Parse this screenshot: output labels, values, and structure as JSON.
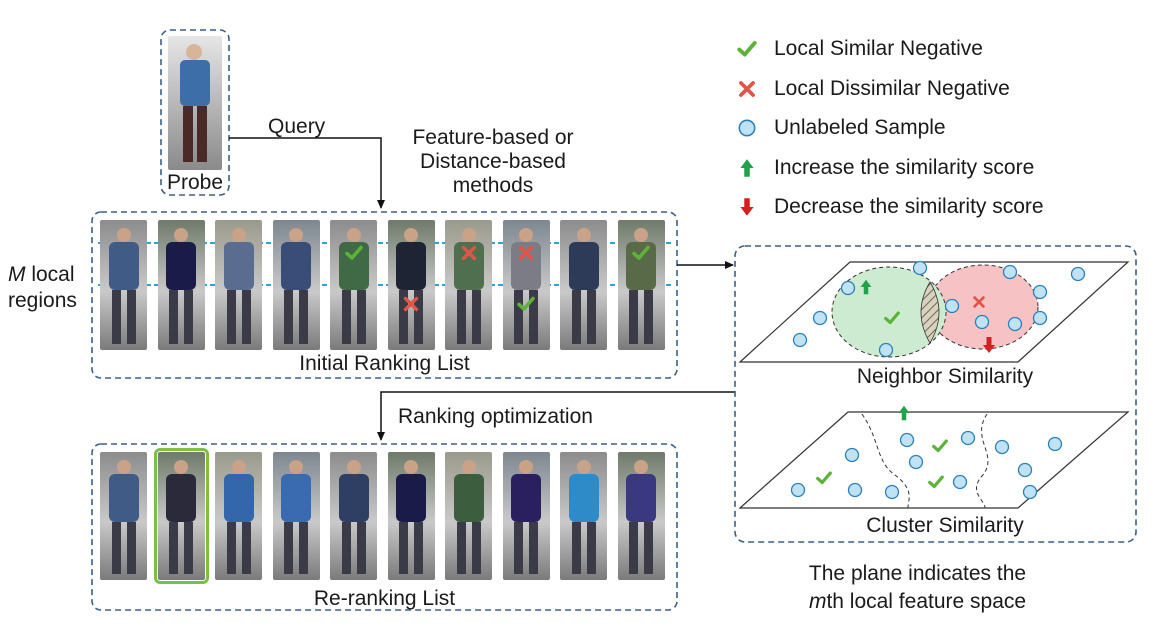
{
  "probe": {
    "label": "Probe"
  },
  "query_label": "Query",
  "method_label": [
    "Feature-based or",
    "Distance-based",
    "methods"
  ],
  "local_regions_label": {
    "italic": "M",
    "line1_rest": " local",
    "line2": "regions"
  },
  "initial_ranking": {
    "caption": "Initial Ranking List",
    "marks": [
      {
        "index": 4,
        "row": 1,
        "mark": "check"
      },
      {
        "index": 6,
        "row": 1,
        "mark": "cross"
      },
      {
        "index": 7,
        "row": 1,
        "mark": "cross"
      },
      {
        "index": 9,
        "row": 1,
        "mark": "check"
      },
      {
        "index": 5,
        "row": 2,
        "mark": "cross"
      },
      {
        "index": 7,
        "row": 2,
        "mark": "check"
      }
    ],
    "image_palette": [
      "#3f5b86",
      "#1b1b4a",
      "#5a6c8f",
      "#3a4d78",
      "#3f6a45",
      "#1e2433",
      "#4f6f4f",
      "#7c7c86",
      "#2d3a58",
      "#596a48"
    ]
  },
  "reranking": {
    "caption": "Re-ranking List",
    "highlight_index": 1,
    "highlight_color": "#7bc043",
    "image_palette": [
      "#3f5b86",
      "#2b2a3a",
      "#3366aa",
      "#3a6ab0",
      "#2f3f63",
      "#1b1b4a",
      "#3c5e3e",
      "#2a2060",
      "#2e8bc8",
      "#3a3880"
    ]
  },
  "optimization_label": "Ranking optimization",
  "legend": [
    {
      "icon": "check",
      "text": "Local Similar Negative"
    },
    {
      "icon": "cross",
      "text": "Local Dissimilar Negative"
    },
    {
      "icon": "circle",
      "text": "Unlabeled Sample"
    },
    {
      "icon": "up",
      "text": "Increase the similarity score"
    },
    {
      "icon": "down",
      "text": "Decrease the similarity score"
    }
  ],
  "neighbor_similarity": {
    "caption": "Neighbor Similarity"
  },
  "cluster_similarity": {
    "caption": "Cluster Similarity"
  },
  "plane_note": {
    "line1": "The plane indicates the",
    "line2_italic": "m",
    "line2_rest": "th local feature space"
  },
  "colors": {
    "check": "#5db33a",
    "cross": "#e05548",
    "up": "#20a24a",
    "down": "#d42020",
    "dot_fill": "#bfe3f5",
    "dot_stroke": "#2d7fb8",
    "dash_box": "#3b5f86",
    "region_line": "#29a3d6",
    "green_ellipse": "#cdebd0",
    "red_ellipse": "#f6c2c4"
  }
}
